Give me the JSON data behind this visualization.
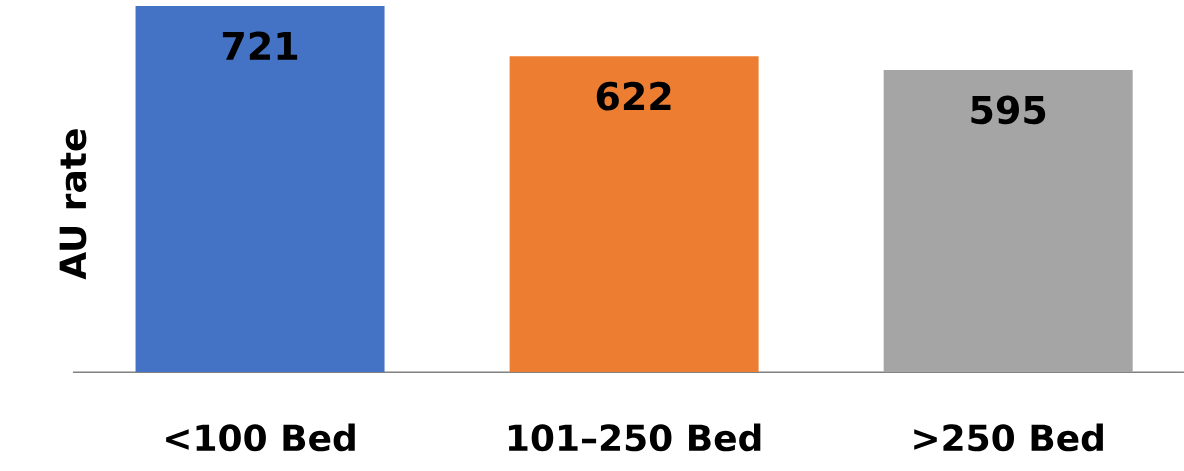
{
  "chart_data": {
    "type": "bar",
    "ylabel": "AU rate",
    "categories": [
      "<100 Bed",
      "101–250 Bed",
      ">250 Bed"
    ],
    "values": [
      721,
      622,
      595
    ],
    "colors": [
      "#4472c4",
      "#ed7d31",
      "#a5a5a5"
    ],
    "data_labels": true
  }
}
